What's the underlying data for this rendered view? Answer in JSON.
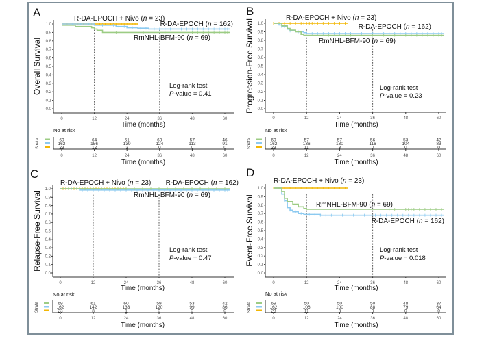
{
  "colors": {
    "RmNHL-BFM-90": "#9ccc84",
    "R-DA-EPOCH": "#8ccaf0",
    "R-DA-EPOCH + Nivo": "#f2b705"
  },
  "chart_data": [
    {
      "type": "line",
      "panel": "A",
      "title": "",
      "ylabel": "Overall Survival",
      "xlabel": "Time (months)",
      "xlim": [
        0,
        62
      ],
      "ylim": [
        0,
        1
      ],
      "xticks": [
        0,
        12,
        24,
        36,
        48,
        60
      ],
      "yticks": [
        "0.0",
        "0.1",
        "0.2",
        "0.3",
        "0.4",
        "0.5",
        "0.6",
        "0.7",
        "0.8",
        "0.9",
        "1.0"
      ],
      "reference_lines_x": [
        12,
        36
      ],
      "stat_text": [
        "Log-rank test",
        "P-value = 0.41"
      ],
      "series": [
        {
          "name": "RmNHL-BFM-90",
          "n": 69,
          "label": "RmNHL-BFM-90 (n = 69)",
          "steps": [
            [
              0,
              0.985
            ],
            [
              5,
              0.97
            ],
            [
              11,
              0.955
            ],
            [
              12,
              0.94
            ],
            [
              13,
              0.925
            ],
            [
              15,
              0.9
            ],
            [
              62,
              0.9
            ]
          ],
          "censor": [
            20,
            30,
            38,
            42,
            45,
            48,
            50,
            52,
            54,
            56,
            58,
            60,
            61
          ]
        },
        {
          "name": "R-DA-EPOCH",
          "n": 162,
          "label": "R-DA-EPOCH (n = 162)",
          "steps": [
            [
              0,
              1.0
            ],
            [
              12,
              0.985
            ],
            [
              20,
              0.97
            ],
            [
              24,
              0.955
            ],
            [
              28,
              0.95
            ],
            [
              32,
              0.94
            ],
            [
              62,
              0.94
            ]
          ],
          "censor": [
            4,
            7,
            10,
            13,
            15,
            17,
            19,
            21,
            23,
            26,
            29,
            31,
            34,
            36,
            38,
            40,
            42,
            44,
            46,
            48,
            50,
            52,
            54,
            56,
            58,
            60,
            61
          ]
        },
        {
          "name": "R-DA-EPOCH + Nivo",
          "n": 23,
          "label": "R-DA-EPOCH + Nivo (n = 23)",
          "steps": [
            [
              0,
              1.0
            ],
            [
              28,
              1.0
            ]
          ],
          "censor": [
            2,
            4,
            6,
            7,
            8,
            9,
            10,
            11,
            12,
            13,
            14,
            15,
            16,
            17,
            18,
            19,
            20,
            21,
            22,
            23,
            24,
            25,
            26,
            27,
            28
          ]
        }
      ],
      "risk_table": {
        "title": "No at risk",
        "strata_label": "Strata",
        "times": [
          0,
          12,
          24,
          36,
          48,
          60
        ],
        "rows": [
          {
            "name": "RmNHL-BFM-90",
            "values": [
              69,
              64,
              61,
              60,
              57,
              46
            ]
          },
          {
            "name": "R-DA-EPOCH",
            "values": [
              162,
              156,
              139,
              124,
              113,
              91
            ]
          },
          {
            "name": "R-DA-EPOCH + Nivo",
            "values": [
              23,
              12,
              3,
              0,
              0,
              0
            ]
          }
        ]
      }
    },
    {
      "type": "line",
      "panel": "B",
      "title": "",
      "ylabel": "Progression-Free Survival",
      "xlabel": "Time (months)",
      "xlim": [
        0,
        62
      ],
      "ylim": [
        0,
        1
      ],
      "xticks": [
        0,
        12,
        24,
        36,
        48,
        60
      ],
      "yticks": [
        "0.0",
        "0.1",
        "0.2",
        "0.3",
        "0.4",
        "0.5",
        "0.6",
        "0.7",
        "0.8",
        "0.9",
        "1.0"
      ],
      "reference_lines_x": [
        12,
        36
      ],
      "stat_text": [
        "Log-rank test",
        "P-value = 0.23"
      ],
      "series": [
        {
          "name": "RmNHL-BFM-90",
          "n": 69,
          "label": "RmNHL-BFM-90 (n = 69)",
          "steps": [
            [
              0,
              1.0
            ],
            [
              3,
              0.97
            ],
            [
              5,
              0.94
            ],
            [
              6,
              0.92
            ],
            [
              8,
              0.9
            ],
            [
              10,
              0.87
            ],
            [
              11,
              0.86
            ],
            [
              62,
              0.86
            ]
          ],
          "censor": [
            20,
            28,
            36,
            40,
            44,
            48,
            50,
            52,
            54,
            56,
            58,
            60,
            61
          ]
        },
        {
          "name": "R-DA-EPOCH",
          "n": 162,
          "label": "R-DA-EPOCH (n = 162)",
          "steps": [
            [
              0,
              1.0
            ],
            [
              2,
              0.98
            ],
            [
              3,
              0.96
            ],
            [
              5,
              0.93
            ],
            [
              6,
              0.91
            ],
            [
              8,
              0.9
            ],
            [
              11,
              0.89
            ],
            [
              12,
              0.88
            ],
            [
              62,
              0.88
            ]
          ],
          "censor": [
            3,
            4,
            6,
            9,
            14,
            16,
            18,
            20,
            22,
            24,
            26,
            28,
            30,
            32,
            34,
            36,
            38,
            40,
            42,
            44,
            46,
            48,
            50,
            52,
            54,
            56,
            58,
            60,
            61
          ]
        },
        {
          "name": "R-DA-EPOCH + Nivo",
          "n": 23,
          "label": "R-DA-EPOCH + Nivo (n = 23)",
          "steps": [
            [
              0,
              1.0
            ],
            [
              27,
              1.0
            ]
          ],
          "censor": [
            0,
            2,
            4,
            6,
            8,
            10,
            11,
            12,
            13,
            14,
            15,
            16,
            18,
            20,
            22,
            24,
            26,
            27
          ]
        }
      ],
      "risk_table": {
        "title": "No at risk",
        "strata_label": "Strata",
        "times": [
          0,
          12,
          24,
          36,
          48,
          60
        ],
        "rows": [
          {
            "name": "RmNHL-BFM-90",
            "values": [
              69,
              57,
              57,
              56,
              53,
              42
            ]
          },
          {
            "name": "R-DA-EPOCH",
            "values": [
              162,
              136,
              130,
              116,
              104,
              83
            ]
          },
          {
            "name": "R-DA-EPOCH + Nivo",
            "values": [
              23,
              11,
              3,
              0,
              0,
              0
            ]
          }
        ]
      }
    },
    {
      "type": "line",
      "panel": "C",
      "title": "",
      "ylabel": "Relapse-Free Survival",
      "xlabel": "Time (months)",
      "xlim": [
        0,
        62
      ],
      "ylim": [
        0,
        1
      ],
      "xticks": [
        0,
        12,
        24,
        36,
        48,
        60
      ],
      "yticks": [
        "0.0",
        "0.1",
        "0.2",
        "0.3",
        "0.4",
        "0.5",
        "0.6",
        "0.7",
        "0.8",
        "0.9",
        "1.0"
      ],
      "reference_lines_x": [
        12,
        36
      ],
      "stat_text": [
        "Log-rank test",
        "P-value = 0.47"
      ],
      "series": [
        {
          "name": "RmNHL-BFM-90",
          "n": 69,
          "label": "RmNHL-BFM-90 (n = 69)",
          "steps": [
            [
              0,
              1.0
            ],
            [
              62,
              1.0
            ]
          ],
          "censor": [
            3,
            6,
            9,
            12,
            15,
            18,
            21,
            24,
            27,
            30,
            33,
            36,
            39,
            42,
            45,
            48,
            51,
            54,
            57,
            60
          ]
        },
        {
          "name": "R-DA-EPOCH",
          "n": 162,
          "label": "R-DA-EPOCH (n = 162)",
          "steps": [
            [
              0,
              1.0
            ],
            [
              7,
              0.985
            ],
            [
              62,
              0.985
            ]
          ],
          "censor": [
            4,
            8,
            10,
            12,
            14,
            16,
            18,
            20,
            22,
            24,
            26,
            28,
            30,
            32,
            34,
            36,
            38,
            40,
            42,
            44,
            46,
            48,
            50,
            52,
            54,
            56,
            58,
            60,
            61
          ]
        },
        {
          "name": "R-DA-EPOCH + Nivo",
          "n": 23,
          "label": "R-DA-EPOCH + Nivo (n = 23)",
          "steps": [
            [
              0,
              1.0
            ],
            [
              24,
              1.0
            ]
          ],
          "censor": [
            1,
            2,
            3,
            4,
            5,
            6,
            7,
            8,
            9,
            10,
            11,
            12,
            13,
            14,
            15,
            16,
            17,
            18,
            19,
            20,
            21,
            22,
            23,
            24
          ]
        }
      ],
      "risk_table": {
        "title": "No at risk",
        "strata_label": "Strata",
        "times": [
          0,
          12,
          24,
          36,
          48,
          60
        ],
        "rows": [
          {
            "name": "RmNHL-BFM-90",
            "values": [
              69,
              61,
              60,
              59,
              53,
              42
            ]
          },
          {
            "name": "R-DA-EPOCH",
            "values": [
              162,
              142,
              133,
              120,
              99,
              86
            ]
          },
          {
            "name": "R-DA-EPOCH + Nivo",
            "values": [
              23,
              8,
              1,
              0,
              0,
              0
            ]
          }
        ]
      }
    },
    {
      "type": "line",
      "panel": "D",
      "title": "",
      "ylabel": "Event-Free Survival",
      "xlabel": "Time (months)",
      "xlim": [
        0,
        62
      ],
      "ylim": [
        0,
        1
      ],
      "xticks": [
        0,
        12,
        24,
        36,
        48,
        60
      ],
      "yticks": [
        "0.0",
        "0.1",
        "0.2",
        "0.3",
        "0.4",
        "0.5",
        "0.6",
        "0.7",
        "0.8",
        "0.9",
        "1.0"
      ],
      "reference_lines_x": [
        12,
        36
      ],
      "stat_text": [
        "Log-rank test",
        "P-value = 0.018"
      ],
      "series": [
        {
          "name": "RmNHL-BFM-90",
          "n": 69,
          "label": "RmNHL-BFM-90 (n = 69)",
          "steps": [
            [
              0,
              1.0
            ],
            [
              3,
              0.96
            ],
            [
              4,
              0.88
            ],
            [
              5,
              0.84
            ],
            [
              7,
              0.81
            ],
            [
              9,
              0.78
            ],
            [
              11,
              0.76
            ],
            [
              12,
              0.75
            ],
            [
              62,
              0.75
            ]
          ],
          "censor": [
            42,
            44,
            48,
            49,
            50,
            51,
            53,
            55,
            57,
            59,
            61
          ]
        },
        {
          "name": "R-DA-EPOCH",
          "n": 162,
          "label": "R-DA-EPOCH (n = 162)",
          "steps": [
            [
              0,
              1.0
            ],
            [
              3,
              0.93
            ],
            [
              4,
              0.85
            ],
            [
              5,
              0.77
            ],
            [
              6,
              0.74
            ],
            [
              7,
              0.72
            ],
            [
              9,
              0.7
            ],
            [
              11,
              0.69
            ],
            [
              17,
              0.68
            ],
            [
              62,
              0.68
            ]
          ],
          "censor": [
            4,
            6,
            8,
            10,
            13,
            15,
            17,
            19,
            21,
            23,
            25,
            27,
            29,
            31,
            33,
            35,
            37,
            39,
            41,
            43,
            45,
            47,
            49,
            51,
            53,
            55,
            57,
            59,
            61
          ]
        },
        {
          "name": "R-DA-EPOCH + Nivo",
          "n": 23,
          "label": "R-DA-EPOCH + Nivo (n = 23)",
          "steps": [
            [
              0,
              1.0
            ],
            [
              27,
              1.0
            ]
          ],
          "censor": [
            0,
            2,
            4,
            6,
            8,
            10,
            12,
            14,
            16,
            18,
            20,
            22,
            24,
            26,
            27
          ]
        }
      ],
      "risk_table": {
        "title": "No at risk",
        "strata_label": "Strata",
        "times": [
          0,
          12,
          24,
          36,
          48,
          60
        ],
        "rows": [
          {
            "name": "RmNHL-BFM-90",
            "values": [
              69,
              50,
              50,
              50,
              48,
              37
            ]
          },
          {
            "name": "R-DA-EPOCH",
            "values": [
              162,
              106,
              100,
              88,
              79,
              64
            ]
          },
          {
            "name": "R-DA-EPOCH + Nivo",
            "values": [
              23,
              11,
              3,
              0,
              0,
              0
            ]
          }
        ]
      }
    }
  ]
}
